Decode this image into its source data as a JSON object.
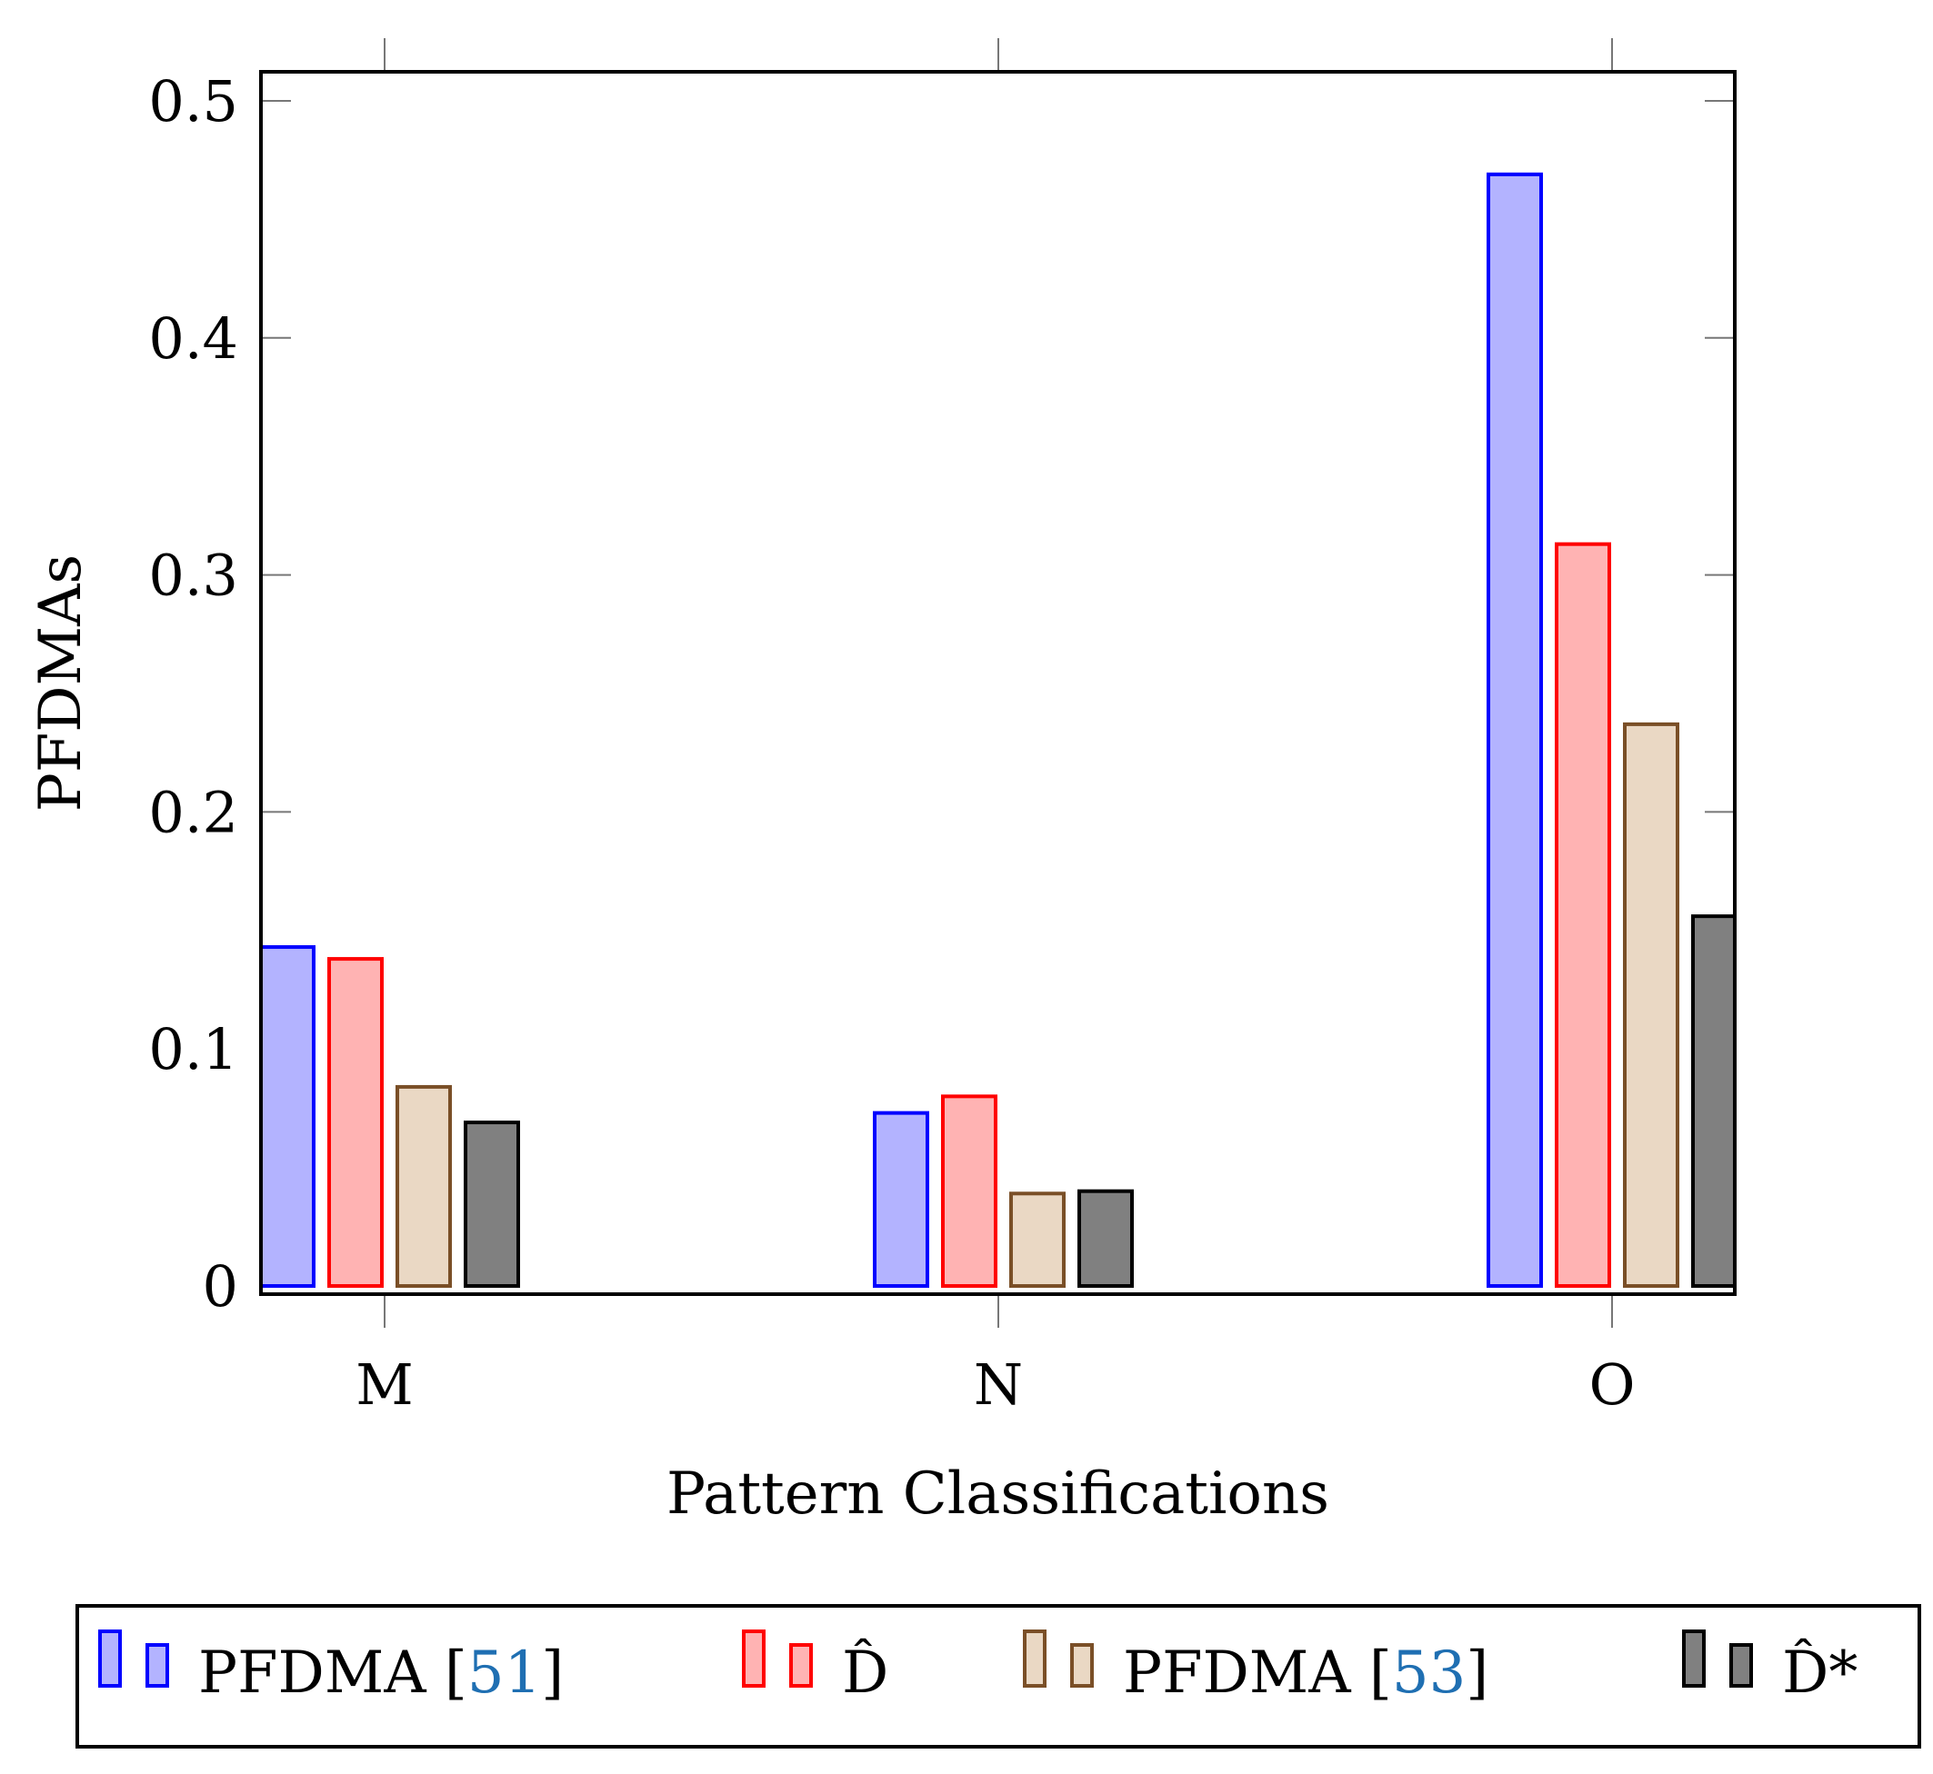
{
  "chart_data": {
    "type": "bar",
    "title": "",
    "xlabel": "Pattern Classifications",
    "ylabel": "PFDMAs",
    "ylim": [
      0,
      0.51
    ],
    "yticks": [
      "0",
      "0.1",
      "0.2",
      "0.3",
      "0.4",
      "0.5"
    ],
    "ytick_values": [
      0,
      0.1,
      0.2,
      0.3,
      0.4,
      0.5
    ],
    "categories": [
      "M",
      "N",
      "O"
    ],
    "series": [
      {
        "name": "PFDMA [51]",
        "label_main": "PFDMA [",
        "label_cite": "51",
        "label_end": "]",
        "fill": "#b3b3ff",
        "stroke": "#0000ff",
        "values": [
          0.143,
          0.073,
          0.469
        ]
      },
      {
        "name": "D-hat",
        "label_main": "D̂",
        "label_cite": "",
        "label_end": "",
        "fill": "#ffb3b3",
        "stroke": "#ff0000",
        "values": [
          0.138,
          0.08,
          0.313
        ]
      },
      {
        "name": "PFDMA [53]",
        "label_main": "PFDMA [",
        "label_cite": "53",
        "label_end": "]",
        "fill": "#ead8c4",
        "stroke": "#7a4f27",
        "values": [
          0.084,
          0.039,
          0.237
        ]
      },
      {
        "name": "D-hat*",
        "label_main": "D̂*",
        "label_cite": "",
        "label_end": "",
        "fill": "#808080",
        "stroke": "#000000",
        "values": [
          0.069,
          0.04,
          0.156
        ]
      }
    ],
    "legend_position": "bottom"
  }
}
